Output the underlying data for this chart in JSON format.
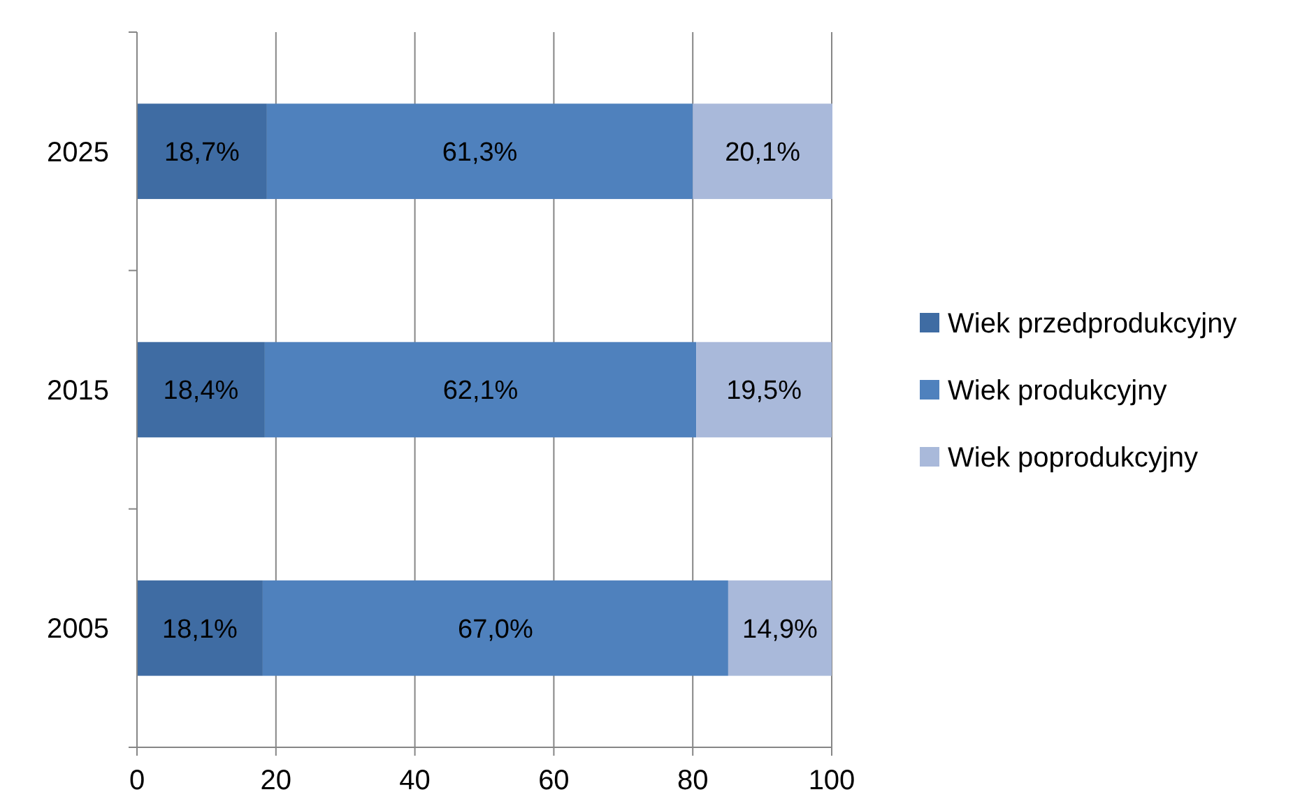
{
  "chart_data": {
    "type": "bar",
    "orientation": "horizontal",
    "stacked": true,
    "categories": [
      "2025",
      "2015",
      "2005"
    ],
    "series": [
      {
        "name": "Wiek przedprodukcyjny",
        "color": "#3f6ca3",
        "values": [
          18.7,
          18.4,
          18.1
        ],
        "value_labels": [
          "18,7%",
          "18,4%",
          "18,1%"
        ]
      },
      {
        "name": "Wiek produkcyjny",
        "color": "#4f81bd",
        "values": [
          61.3,
          62.1,
          67.0
        ],
        "value_labels": [
          "61,3%",
          "62,1%",
          "67,0%"
        ]
      },
      {
        "name": "Wiek poprodukcyjny",
        "color": "#a9b9da",
        "values": [
          20.1,
          19.5,
          14.9
        ],
        "value_labels": [
          "20,1%",
          "19,5%",
          "14,9%"
        ]
      }
    ],
    "xlim": [
      0,
      100
    ],
    "xticks": [
      0,
      20,
      40,
      60,
      80,
      100
    ],
    "grid": "x",
    "legend": "right"
  }
}
